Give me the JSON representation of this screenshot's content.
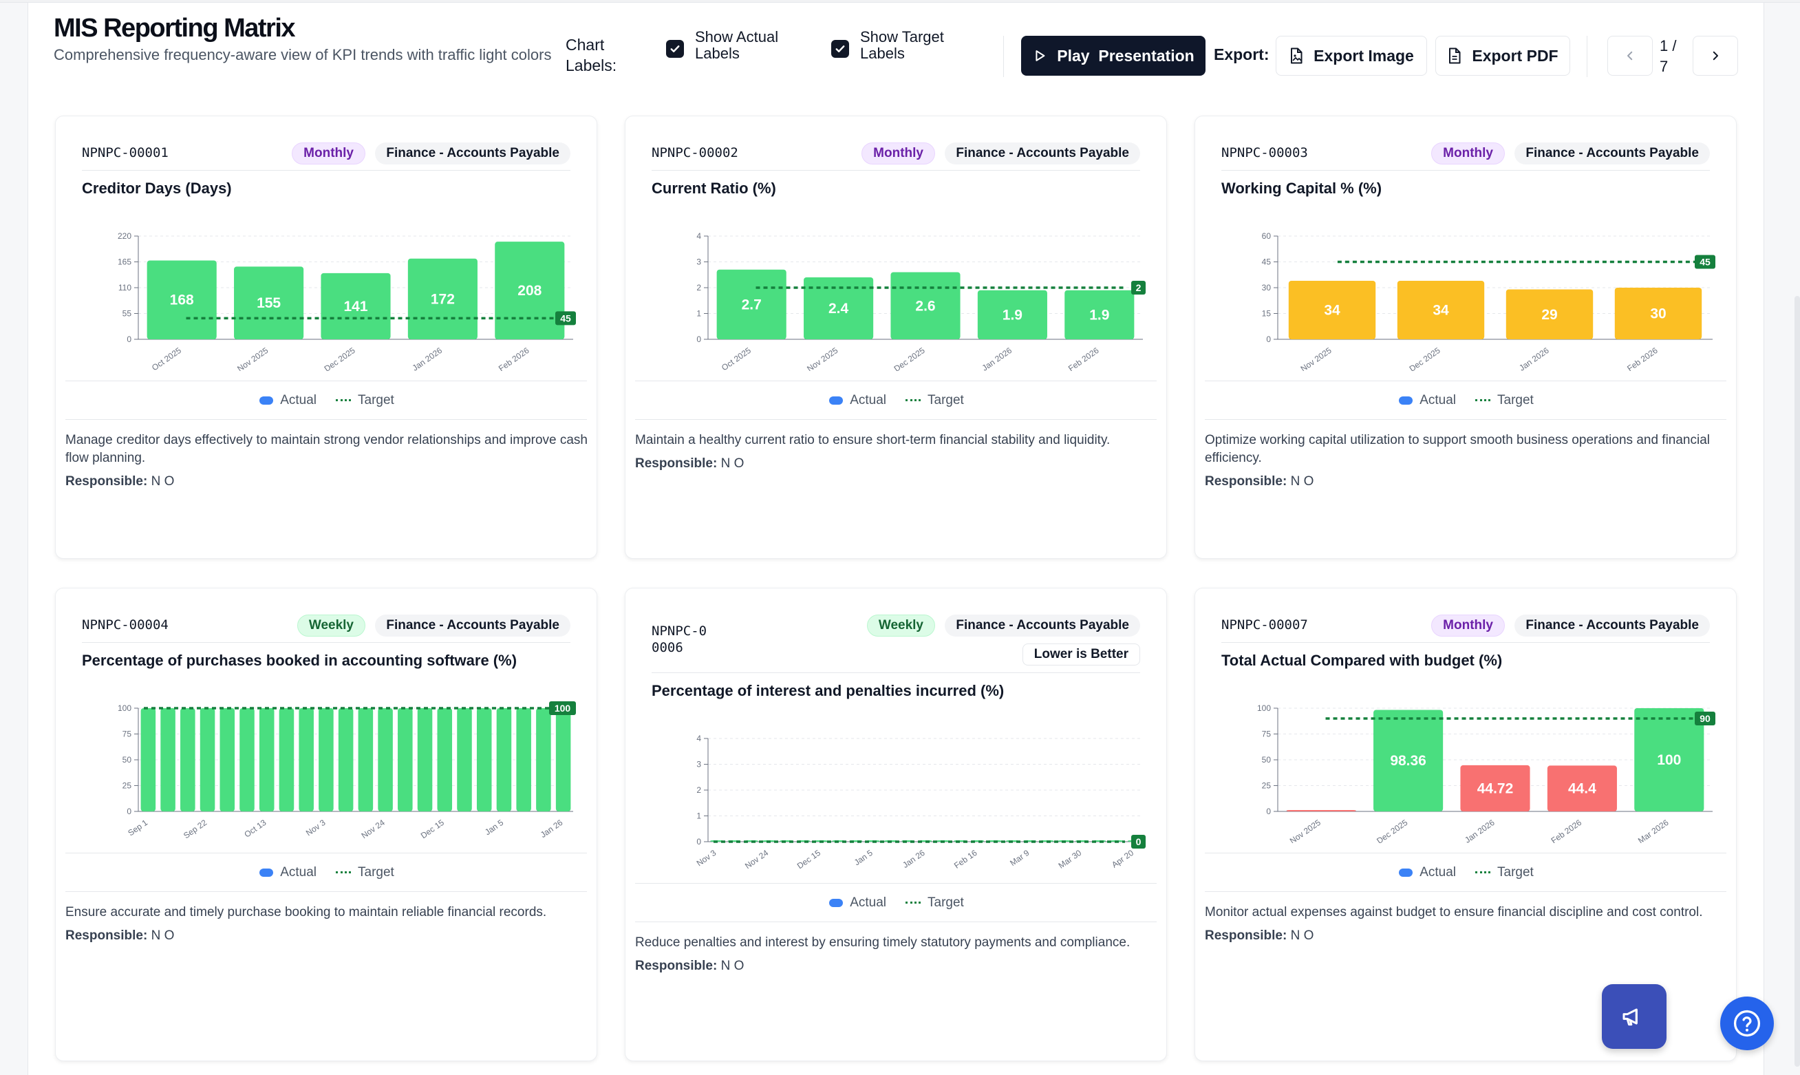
{
  "header": {
    "title": "MIS Reporting Matrix",
    "subtitle": "Comprehensive frequency-aware view of KPI trends with traffic light colors",
    "chart_labels_label": "Chart Labels:",
    "show_actual_label": "Show Actual Labels",
    "show_target_label": "Show Target Labels",
    "play_label": "Play  Presentation",
    "export_label": "Export:",
    "export_image_label": "Export Image",
    "export_pdf_label": "Export PDF",
    "page_indicator": "1 / 7"
  },
  "legend": {
    "actual": "Actual",
    "target": "Target"
  },
  "responsible_label": "Responsible:",
  "cards": [
    {
      "code": "NPNPC-00001",
      "frequency": "Monthly",
      "department": "Finance - Accounts Payable",
      "title": "Creditor Days (Days)",
      "description": "Manage creditor days effectively to maintain strong vendor relationships and improve cash flow planning.",
      "responsible": "N O"
    },
    {
      "code": "NPNPC-00002",
      "frequency": "Monthly",
      "department": "Finance - Accounts Payable",
      "title": "Current Ratio (%)",
      "description": "Maintain a healthy current ratio to ensure short-term financial stability and liquidity.",
      "responsible": "N O"
    },
    {
      "code": "NPNPC-00003",
      "frequency": "Monthly",
      "department": "Finance - Accounts Payable",
      "title": "Working Capital % (%)",
      "description": "Optimize working capital utilization to support smooth business operations and financial efficiency.",
      "responsible": "N O"
    },
    {
      "code": "NPNPC-00004",
      "frequency": "Weekly",
      "department": "Finance - Accounts Payable",
      "title": "Percentage of purchases booked in accounting software (%)",
      "description": "Ensure accurate and timely purchase booking to maintain reliable financial records.",
      "responsible": "N O"
    },
    {
      "code": "NPNPC-00006",
      "frequency": "Weekly",
      "department": "Finance - Accounts Payable",
      "direction": "Lower is Better",
      "title": "Percentage of interest and penalties incurred (%)",
      "description": "Reduce penalties and interest by ensuring timely statutory payments and compliance.",
      "responsible": "N O"
    },
    {
      "code": "NPNPC-00007",
      "frequency": "Monthly",
      "department": "Finance - Accounts Payable",
      "title": "Total Actual Compared with budget (%)",
      "description": "Monitor actual expenses against budget to ensure financial discipline and cost control.",
      "responsible": "N O"
    }
  ],
  "colors": {
    "green": "#4ade80",
    "green_dark": "#34d399",
    "amber": "#fbbf24",
    "red": "#f87171",
    "target": "#15803d",
    "dark": "#0f172a"
  },
  "chart_data": [
    {
      "type": "bar",
      "categories": [
        "Oct 2025",
        "Nov 2025",
        "Dec 2025",
        "Jan 2026",
        "Feb 2026"
      ],
      "values": [
        168,
        155,
        141,
        172,
        208
      ],
      "target": 45,
      "ylim": [
        0,
        220
      ],
      "yticks": [
        0,
        55,
        110,
        165,
        220
      ],
      "bar_colors": [
        "green",
        "green",
        "green",
        "green",
        "green"
      ],
      "show_labels": true
    },
    {
      "type": "bar",
      "categories": [
        "Oct 2025",
        "Nov 2025",
        "Dec 2025",
        "Jan 2026",
        "Feb 2026"
      ],
      "values": [
        2.7,
        2.4,
        2.6,
        1.9,
        1.9
      ],
      "target": 2,
      "ylim": [
        0,
        4
      ],
      "yticks": [
        0,
        1,
        2,
        3,
        4
      ],
      "bar_colors": [
        "green",
        "green",
        "green",
        "green",
        "green"
      ],
      "show_labels": true
    },
    {
      "type": "bar",
      "categories": [
        "Nov 2025",
        "Dec 2025",
        "Jan 2026",
        "Feb 2026"
      ],
      "values": [
        34,
        34,
        29,
        30
      ],
      "target": 45,
      "ylim": [
        0,
        60
      ],
      "yticks": [
        0,
        15,
        30,
        45,
        60
      ],
      "bar_colors": [
        "amber",
        "amber",
        "amber",
        "amber"
      ],
      "show_labels": true
    },
    {
      "type": "bar",
      "categories": [
        "Sep 1",
        "Sep 8",
        "Sep 15",
        "Sep 22",
        "Sep 29",
        "Oct 6",
        "Oct 13",
        "Oct 20",
        "Oct 27",
        "Nov 3",
        "Nov 10",
        "Nov 17",
        "Nov 24",
        "Dec 1",
        "Dec 8",
        "Dec 15",
        "Dec 22",
        "Dec 29",
        "Jan 5",
        "Jan 12",
        "Jan 19",
        "Jan 26"
      ],
      "tick_labels": [
        "Sep 1",
        "Sep 22",
        "Oct 13",
        "Nov 3",
        "Nov 24",
        "Dec 15",
        "Jan 5",
        "Jan 26"
      ],
      "values": [
        100,
        100,
        100,
        100,
        100,
        100,
        100,
        100,
        100,
        100,
        100,
        100,
        100,
        100,
        100,
        100,
        100,
        100,
        100,
        100,
        100,
        100
      ],
      "target": 100,
      "ylim": [
        0,
        100
      ],
      "yticks": [
        0,
        25,
        50,
        75,
        100
      ],
      "bar_colors": "green",
      "show_labels": false
    },
    {
      "type": "bar",
      "categories": [
        "Nov 3",
        "Nov 10",
        "Nov 17",
        "Nov 24",
        "Dec 1",
        "Dec 8",
        "Dec 15",
        "Dec 22",
        "Dec 29",
        "Jan 5",
        "Jan 12",
        "Jan 19",
        "Jan 26",
        "Feb 2",
        "Feb 9",
        "Feb 16",
        "Feb 23",
        "Mar 2",
        "Mar 9",
        "Mar 16",
        "Mar 23",
        "Mar 30",
        "Apr 6",
        "Apr 13",
        "Apr 20"
      ],
      "tick_labels": [
        "Nov 3",
        "Nov 24",
        "Dec 15",
        "Jan 5",
        "Jan 26",
        "Feb 16",
        "Mar 9",
        "Mar 30",
        "Apr 20"
      ],
      "values": [
        0,
        0,
        0,
        0,
        0,
        0,
        0,
        0,
        0,
        0,
        0,
        0,
        0,
        0,
        0,
        0,
        0,
        0,
        0,
        0,
        0,
        0,
        0,
        0,
        0
      ],
      "target": 0,
      "ylim": [
        0,
        4
      ],
      "yticks": [
        0,
        1,
        2,
        3,
        4
      ],
      "bar_colors": "green",
      "show_labels": false
    },
    {
      "type": "bar",
      "categories": [
        "Nov 2025",
        "Dec 2025",
        "Jan 2026",
        "Feb 2026",
        "Mar 2026"
      ],
      "values": [
        0,
        98.36,
        44.72,
        44.4,
        100
      ],
      "target": 90,
      "ylim": [
        0,
        100
      ],
      "yticks": [
        0,
        25,
        50,
        75,
        100
      ],
      "bar_colors": [
        "red",
        "green",
        "red",
        "red",
        "green"
      ],
      "show_labels": true,
      "value_labels": [
        "",
        "98.36",
        "44.72",
        "44.4",
        "100"
      ]
    }
  ]
}
